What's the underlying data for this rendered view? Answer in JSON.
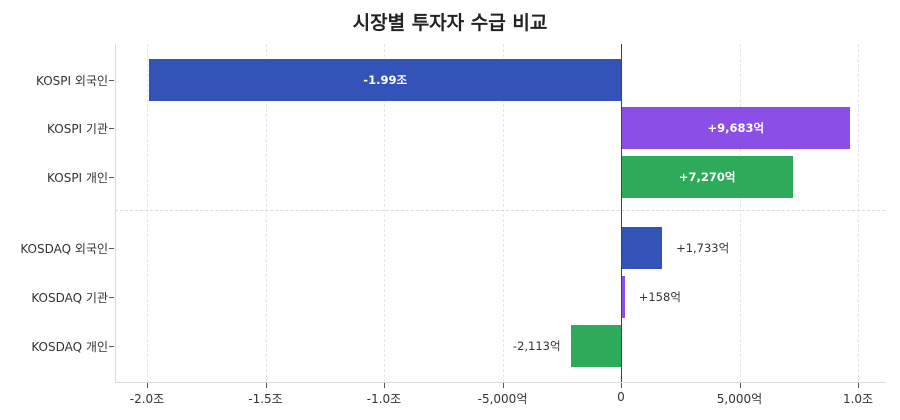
{
  "title": "시장별 투자자 수급 비교",
  "colors": {
    "foreign": "#3353b8",
    "institution": "#8b4fe8",
    "individual": "#2eab5a"
  },
  "chart_data": {
    "type": "bar",
    "orientation": "horizontal",
    "title": "시장별 투자자 수급 비교",
    "xlabel": "",
    "ylabel": "",
    "unit": "억원",
    "xlim": [
      -21000,
      11000
    ],
    "categories": [
      "KOSPI 외국인",
      "KOSPI 기관",
      "KOSPI 개인",
      "KOSDAQ 외국인",
      "KOSDAQ 기관",
      "KOSDAQ 개인"
    ],
    "values": [
      -19900,
      9683,
      7270,
      1733,
      158,
      -2113
    ],
    "value_labels": [
      "-1.99조",
      "+9,683억",
      "+7,270억",
      "+1,733억",
      "+158억",
      "-2,113억"
    ],
    "bar_colors": [
      "#3353b8",
      "#8b4fe8",
      "#2eab5a",
      "#3353b8",
      "#8b4fe8",
      "#2eab5a"
    ],
    "x_ticks": [
      -20000,
      -15000,
      -10000,
      -5000,
      0,
      5000,
      10000
    ],
    "x_tick_labels": [
      "-2.0조",
      "-1.5조",
      "-1.0조",
      "-5,000억",
      "0",
      "5,000억",
      "1.0조"
    ],
    "grid": {
      "x": true,
      "y": false,
      "style": "dashed"
    },
    "group_separator_after_index": 2,
    "legend": null
  }
}
